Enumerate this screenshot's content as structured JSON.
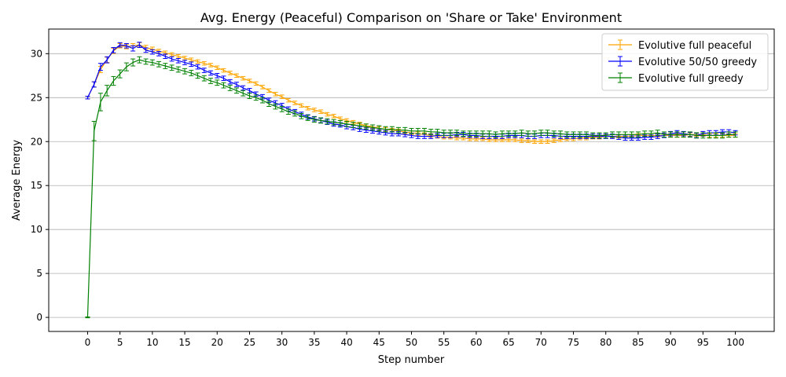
{
  "chart_data": {
    "type": "line",
    "title": "Avg. Energy (Peaceful) Comparison on 'Share or Take' Environment",
    "xlabel": "Step number",
    "ylabel": "Average Energy",
    "xlim": [
      -6,
      106
    ],
    "ylim": [
      -1.6,
      32.8
    ],
    "xticks": [
      0,
      5,
      10,
      15,
      20,
      25,
      30,
      35,
      40,
      45,
      50,
      55,
      60,
      65,
      70,
      75,
      80,
      85,
      90,
      95,
      100
    ],
    "yticks": [
      0,
      5,
      10,
      15,
      20,
      25,
      30
    ],
    "grid": "horizontal",
    "legend_position": "top-right",
    "error_bars": true,
    "x": [
      0,
      1,
      2,
      3,
      4,
      5,
      6,
      7,
      8,
      9,
      10,
      11,
      12,
      13,
      14,
      15,
      16,
      17,
      18,
      19,
      20,
      21,
      22,
      23,
      24,
      25,
      26,
      27,
      28,
      29,
      30,
      31,
      32,
      33,
      34,
      35,
      36,
      37,
      38,
      39,
      40,
      41,
      42,
      43,
      44,
      45,
      46,
      47,
      48,
      49,
      50,
      51,
      52,
      53,
      54,
      55,
      56,
      57,
      58,
      59,
      60,
      61,
      62,
      63,
      64,
      65,
      66,
      67,
      68,
      69,
      70,
      71,
      72,
      73,
      74,
      75,
      76,
      77,
      78,
      79,
      80,
      81,
      82,
      83,
      84,
      85,
      86,
      87,
      88,
      89,
      90,
      91,
      92,
      93,
      94,
      95,
      96,
      97,
      98,
      99,
      100
    ],
    "series": [
      {
        "name": "Evolutive full peaceful",
        "color": "#ffa500",
        "values": [
          25.0,
          26.5,
          28.2,
          29.3,
          30.3,
          30.9,
          30.8,
          30.9,
          31.0,
          30.7,
          30.5,
          30.3,
          30.1,
          29.9,
          29.7,
          29.5,
          29.3,
          29.1,
          28.9,
          28.7,
          28.4,
          28.1,
          27.8,
          27.5,
          27.2,
          26.9,
          26.6,
          26.2,
          25.8,
          25.4,
          25.1,
          24.7,
          24.4,
          24.1,
          23.8,
          23.6,
          23.4,
          23.1,
          22.9,
          22.6,
          22.4,
          22.2,
          22.0,
          21.8,
          21.7,
          21.5,
          21.4,
          21.3,
          21.2,
          21.1,
          21.0,
          20.9,
          20.8,
          20.7,
          20.6,
          20.5,
          20.5,
          20.4,
          20.4,
          20.3,
          20.3,
          20.3,
          20.2,
          20.2,
          20.2,
          20.2,
          20.2,
          20.1,
          20.1,
          20.0,
          20.0,
          20.0,
          20.1,
          20.2,
          20.3,
          20.3,
          20.4,
          20.4,
          20.5,
          20.5,
          20.6,
          20.6,
          20.6,
          20.6,
          20.6,
          20.7,
          20.7,
          20.7,
          20.7,
          20.7,
          20.7,
          20.7,
          20.7,
          20.8,
          20.8,
          20.8,
          20.7,
          20.7,
          20.7,
          20.7,
          20.7
        ],
        "errors": [
          0.15,
          0.3,
          0.35,
          0.3,
          0.3,
          0.25,
          0.25,
          0.25,
          0.25,
          0.25,
          0.25,
          0.2,
          0.2,
          0.2,
          0.2,
          0.2,
          0.2,
          0.2,
          0.2,
          0.2,
          0.2,
          0.2,
          0.2,
          0.2,
          0.2,
          0.2,
          0.2,
          0.2,
          0.2,
          0.2,
          0.2,
          0.2,
          0.2,
          0.2,
          0.2,
          0.2,
          0.2,
          0.2,
          0.2,
          0.2,
          0.2,
          0.2,
          0.2,
          0.2,
          0.2,
          0.2,
          0.2,
          0.2,
          0.2,
          0.2,
          0.2,
          0.2,
          0.2,
          0.2,
          0.2,
          0.2,
          0.2,
          0.2,
          0.2,
          0.2,
          0.2,
          0.2,
          0.2,
          0.2,
          0.2,
          0.2,
          0.2,
          0.2,
          0.2,
          0.2,
          0.2,
          0.2,
          0.2,
          0.2,
          0.2,
          0.2,
          0.2,
          0.2,
          0.2,
          0.2,
          0.2,
          0.2,
          0.2,
          0.2,
          0.2,
          0.2,
          0.2,
          0.2,
          0.2,
          0.2,
          0.2,
          0.2,
          0.2,
          0.2,
          0.2,
          0.2,
          0.2,
          0.2,
          0.2,
          0.2,
          0.2
        ]
      },
      {
        "name": "Evolutive 50/50 greedy",
        "color": "#0000ff",
        "values": [
          25.0,
          26.5,
          28.5,
          29.3,
          30.4,
          31.0,
          30.9,
          30.6,
          31.0,
          30.4,
          30.2,
          30.0,
          29.7,
          29.4,
          29.2,
          29.0,
          28.8,
          28.5,
          28.1,
          27.8,
          27.5,
          27.2,
          26.8,
          26.5,
          26.1,
          25.8,
          25.4,
          25.1,
          24.7,
          24.4,
          24.1,
          23.7,
          23.4,
          23.1,
          22.8,
          22.6,
          22.4,
          22.2,
          22.0,
          21.9,
          21.7,
          21.6,
          21.4,
          21.3,
          21.2,
          21.1,
          21.0,
          20.9,
          20.9,
          20.8,
          20.7,
          20.6,
          20.6,
          20.6,
          20.7,
          20.7,
          20.7,
          20.8,
          20.8,
          20.7,
          20.7,
          20.6,
          20.6,
          20.6,
          20.6,
          20.7,
          20.7,
          20.7,
          20.6,
          20.6,
          20.7,
          20.7,
          20.7,
          20.6,
          20.6,
          20.6,
          20.6,
          20.6,
          20.6,
          20.6,
          20.6,
          20.6,
          20.5,
          20.4,
          20.4,
          20.4,
          20.5,
          20.5,
          20.6,
          20.7,
          20.9,
          21.0,
          20.9,
          20.8,
          20.7,
          20.9,
          21.0,
          21.0,
          21.1,
          21.1,
          21.0
        ],
        "errors": [
          0.15,
          0.3,
          0.4,
          0.35,
          0.3,
          0.25,
          0.25,
          0.3,
          0.3,
          0.25,
          0.25,
          0.25,
          0.25,
          0.25,
          0.25,
          0.25,
          0.25,
          0.25,
          0.25,
          0.25,
          0.25,
          0.25,
          0.25,
          0.25,
          0.25,
          0.25,
          0.25,
          0.25,
          0.25,
          0.25,
          0.25,
          0.25,
          0.25,
          0.25,
          0.25,
          0.25,
          0.25,
          0.25,
          0.25,
          0.25,
          0.25,
          0.25,
          0.25,
          0.25,
          0.25,
          0.25,
          0.25,
          0.25,
          0.25,
          0.25,
          0.25,
          0.25,
          0.25,
          0.25,
          0.25,
          0.25,
          0.25,
          0.25,
          0.25,
          0.25,
          0.25,
          0.25,
          0.25,
          0.25,
          0.25,
          0.25,
          0.25,
          0.25,
          0.25,
          0.25,
          0.25,
          0.25,
          0.25,
          0.25,
          0.25,
          0.25,
          0.25,
          0.25,
          0.25,
          0.25,
          0.25,
          0.25,
          0.25,
          0.25,
          0.25,
          0.25,
          0.25,
          0.25,
          0.25,
          0.25,
          0.25,
          0.25,
          0.25,
          0.25,
          0.25,
          0.25,
          0.25,
          0.25,
          0.25,
          0.25,
          0.25
        ]
      },
      {
        "name": "Evolutive full greedy",
        "color": "#008000",
        "values": [
          0.0,
          21.2,
          24.5,
          25.8,
          26.9,
          27.7,
          28.5,
          29.0,
          29.3,
          29.1,
          29.0,
          28.8,
          28.6,
          28.4,
          28.2,
          28.0,
          27.8,
          27.5,
          27.2,
          26.9,
          26.7,
          26.4,
          26.1,
          25.8,
          25.5,
          25.2,
          25.0,
          24.7,
          24.3,
          24.0,
          23.7,
          23.4,
          23.2,
          22.9,
          22.7,
          22.5,
          22.4,
          22.3,
          22.2,
          22.1,
          22.0,
          21.9,
          21.8,
          21.7,
          21.6,
          21.5,
          21.4,
          21.4,
          21.3,
          21.3,
          21.2,
          21.2,
          21.2,
          21.1,
          21.1,
          21.0,
          21.0,
          21.0,
          20.9,
          20.9,
          20.9,
          20.9,
          20.9,
          20.8,
          20.9,
          20.9,
          20.9,
          21.0,
          20.9,
          20.9,
          21.0,
          21.0,
          20.9,
          20.9,
          20.8,
          20.8,
          20.8,
          20.8,
          20.7,
          20.7,
          20.7,
          20.8,
          20.8,
          20.8,
          20.8,
          20.8,
          20.9,
          20.9,
          21.0,
          20.8,
          20.8,
          20.8,
          20.8,
          20.8,
          20.7,
          20.7,
          20.7,
          20.7,
          20.7,
          20.8,
          20.8
        ],
        "errors": [
          0.05,
          1.1,
          1.0,
          0.6,
          0.5,
          0.45,
          0.45,
          0.4,
          0.35,
          0.3,
          0.3,
          0.3,
          0.3,
          0.3,
          0.3,
          0.3,
          0.3,
          0.3,
          0.3,
          0.3,
          0.3,
          0.3,
          0.3,
          0.3,
          0.3,
          0.3,
          0.3,
          0.3,
          0.3,
          0.3,
          0.3,
          0.3,
          0.3,
          0.3,
          0.3,
          0.3,
          0.3,
          0.3,
          0.3,
          0.3,
          0.3,
          0.3,
          0.3,
          0.3,
          0.3,
          0.3,
          0.3,
          0.3,
          0.3,
          0.3,
          0.3,
          0.3,
          0.3,
          0.3,
          0.3,
          0.3,
          0.3,
          0.3,
          0.3,
          0.3,
          0.3,
          0.3,
          0.3,
          0.3,
          0.3,
          0.3,
          0.3,
          0.3,
          0.3,
          0.3,
          0.3,
          0.3,
          0.3,
          0.3,
          0.3,
          0.3,
          0.3,
          0.3,
          0.3,
          0.3,
          0.3,
          0.3,
          0.3,
          0.3,
          0.3,
          0.3,
          0.3,
          0.3,
          0.3,
          0.3,
          0.3,
          0.3,
          0.3,
          0.3,
          0.3,
          0.3,
          0.3,
          0.3,
          0.3,
          0.3,
          0.3
        ]
      }
    ]
  }
}
